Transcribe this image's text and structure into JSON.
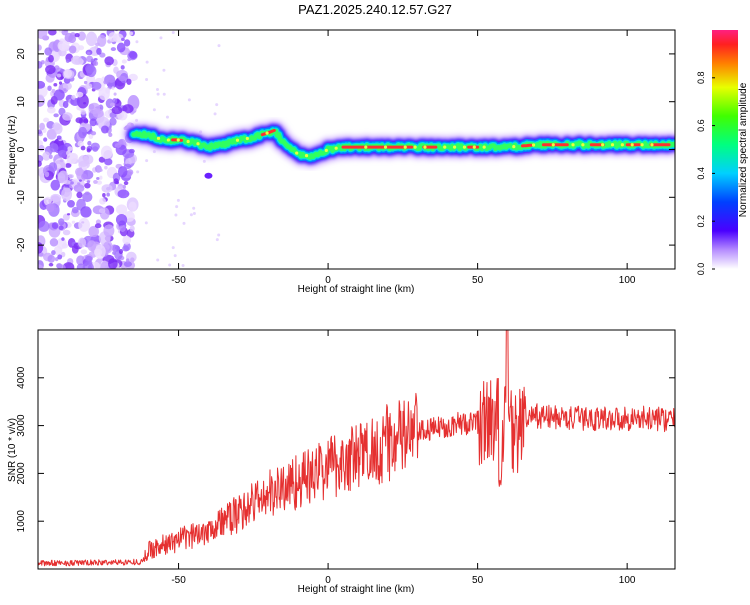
{
  "title": "PAZ1.2025.240.12.57.G27",
  "chart_data": [
    {
      "type": "heatmap",
      "xlabel": "Height of straight line (km)",
      "ylabel": "Frequency (Hz)",
      "xlim": [
        -97,
        116
      ],
      "ylim": [
        -25,
        25
      ],
      "xticks": [
        -50,
        0,
        50,
        100
      ],
      "yticks": [
        -20,
        -10,
        0,
        10,
        20
      ],
      "colorbar": {
        "label": "Normalized spectral amplitude",
        "range": [
          0,
          1
        ],
        "ticks": [
          "0.0",
          "0.2",
          "0.4",
          "0.6",
          "0.8"
        ]
      },
      "ridge": {
        "x": [
          -65,
          -60,
          -55,
          -50,
          -45,
          -40,
          -35,
          -30,
          -25,
          -20,
          -18,
          -15,
          -10,
          -5,
          0,
          5,
          10,
          20,
          30,
          40,
          50,
          60,
          70,
          80,
          90,
          100,
          110,
          116
        ],
        "y": [
          3.5,
          3,
          2,
          2,
          1.5,
          0.5,
          1,
          2,
          2.5,
          3.5,
          4,
          1.5,
          -1,
          -1.5,
          0,
          0.5,
          0.5,
          0.5,
          0.5,
          0.5,
          0.5,
          0.5,
          1,
          1,
          1,
          1,
          1,
          1
        ]
      },
      "noise_region_x": [
        -97,
        -65
      ]
    },
    {
      "type": "line",
      "xlabel": "Height of straight line (km)",
      "ylabel": "SNR (10 * v/v)",
      "xlim": [
        -97,
        116
      ],
      "ylim": [
        0,
        5000
      ],
      "xticks": [
        -50,
        0,
        50,
        100
      ],
      "yticks": [
        1000,
        2000,
        3000,
        4000
      ],
      "series": [
        {
          "color": "#e53030",
          "x": [
            -97,
            -80,
            -62,
            -60,
            -55,
            -50,
            -45,
            -40,
            -35,
            -30,
            -25,
            -20,
            -15,
            -10,
            -5,
            0,
            10,
            20,
            30,
            40,
            45,
            50,
            52,
            55,
            57,
            60,
            63,
            65,
            70,
            80,
            90,
            100,
            110,
            116
          ],
          "y": [
            120,
            130,
            150,
            400,
            500,
            600,
            700,
            850,
            1000,
            1150,
            1400,
            1550,
            1700,
            1850,
            1950,
            2150,
            2350,
            2650,
            2850,
            3000,
            3050,
            3050,
            3100,
            3100,
            3200,
            3000,
            2800,
            3100,
            3200,
            3150,
            3150,
            3150,
            3150,
            3100
          ]
        }
      ]
    }
  ]
}
